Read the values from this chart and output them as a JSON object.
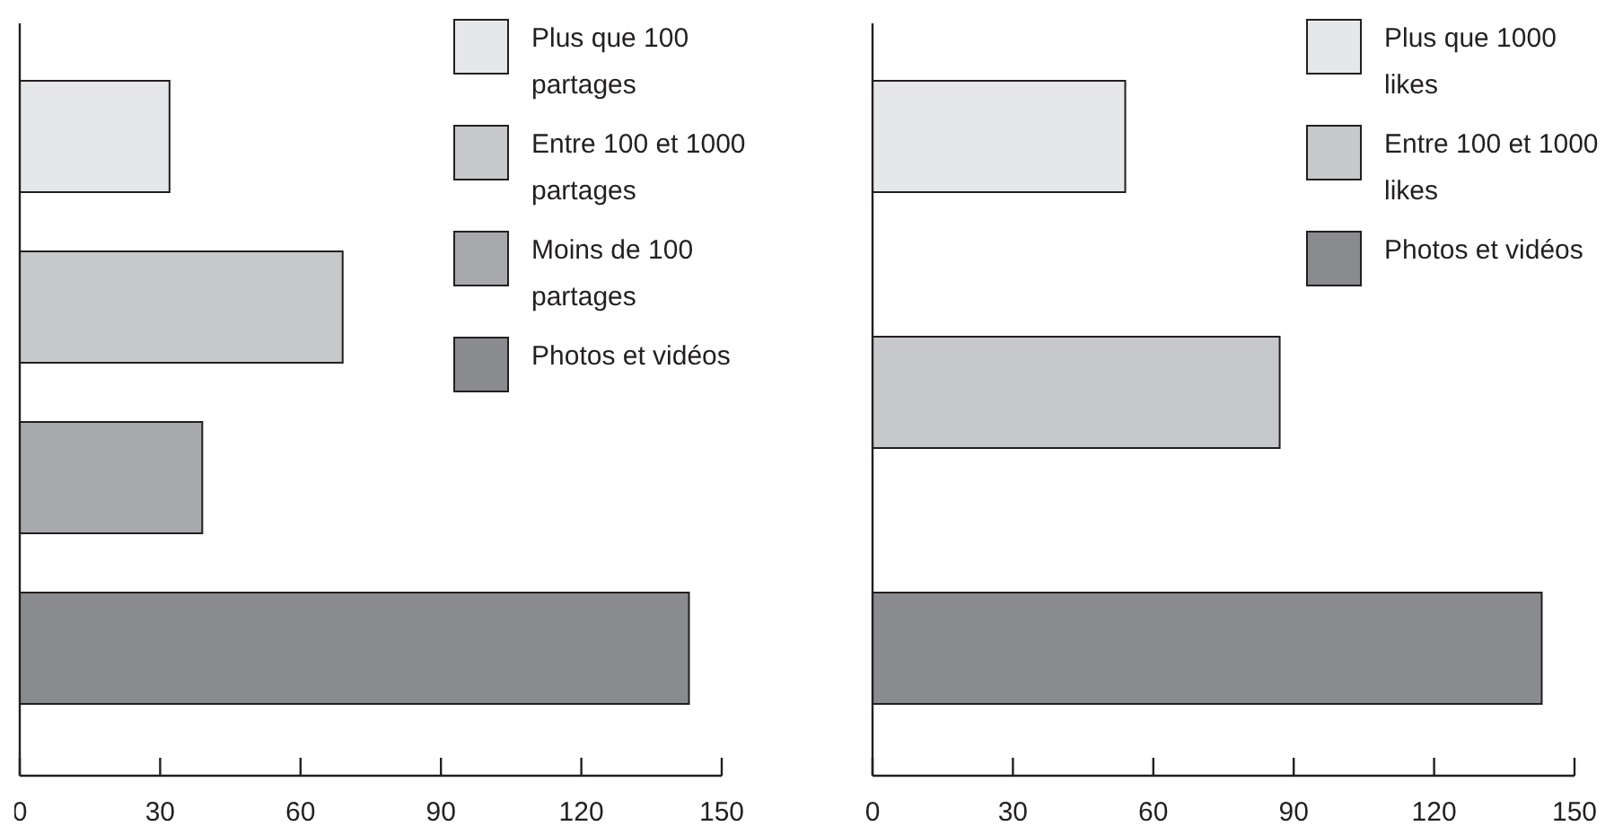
{
  "chart_data": [
    {
      "type": "bar",
      "orientation": "horizontal",
      "categories": [
        null,
        null,
        null,
        null
      ],
      "series": [
        {
          "name": "Plus que 100 partages",
          "color": "#e6e7e8",
          "values": [
            32,
            null,
            null,
            null
          ]
        },
        {
          "name": "Entre 100 et 1000 partages",
          "color": "#c7c8ca",
          "values": [
            null,
            69,
            null,
            null
          ]
        },
        {
          "name": "Moins de 100 partages",
          "color": "#a7a9ac",
          "values": [
            null,
            null,
            39,
            null
          ]
        },
        {
          "name": "Photos et vidéos",
          "color": "#8a8b8f",
          "values": [
            null,
            null,
            null,
            143
          ]
        }
      ],
      "xlim": [
        0,
        150
      ],
      "xticks": [
        0,
        30,
        60,
        90,
        120,
        150
      ],
      "legend": "top right",
      "grid": false
    },
    {
      "type": "bar",
      "orientation": "horizontal",
      "categories": [
        null,
        null,
        null
      ],
      "series": [
        {
          "name": "Plus que 1000 likes",
          "color": "#e6e7e8",
          "values": [
            54,
            null,
            null
          ]
        },
        {
          "name": "Entre 100 et 1000 likes",
          "color": "#c7c8ca",
          "values": [
            null,
            87,
            null
          ]
        },
        {
          "name": "Photos et vidéos",
          "color": "#8a8b8f",
          "values": [
            null,
            null,
            143
          ]
        }
      ],
      "xlim": [
        0,
        150
      ],
      "xticks": [
        0,
        30,
        60,
        90,
        120,
        150
      ],
      "legend": "top right",
      "grid": false
    }
  ]
}
